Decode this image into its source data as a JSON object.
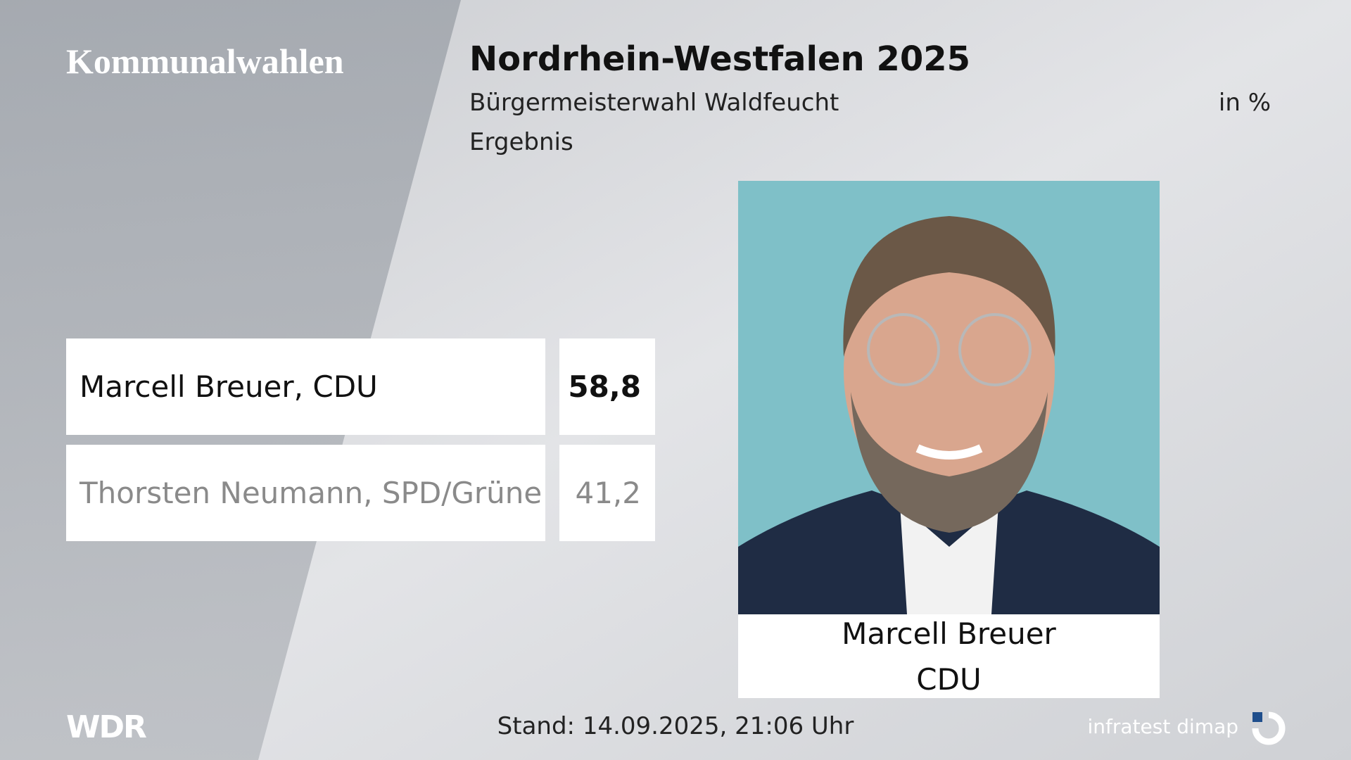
{
  "header": {
    "section": "Kommunalwahlen",
    "title": "Nordrhein-Westfalen 2025",
    "subtitle": "Bürgermeisterwahl Waldfeucht",
    "unit": "in %",
    "status": "Ergebnis"
  },
  "table": {
    "rows": [
      [
        "Marcell Breuer, CDU",
        "58,8"
      ],
      [
        "Thorsten Neumann, SPD/Grüne",
        "41,2"
      ]
    ]
  },
  "candidate": {
    "name": "Marcell Breuer",
    "party": "CDU"
  },
  "footer": {
    "logo": "WDR",
    "stand": "Stand: 14.09.2025, 21:06 Uhr",
    "source": "infratest dimap"
  }
}
